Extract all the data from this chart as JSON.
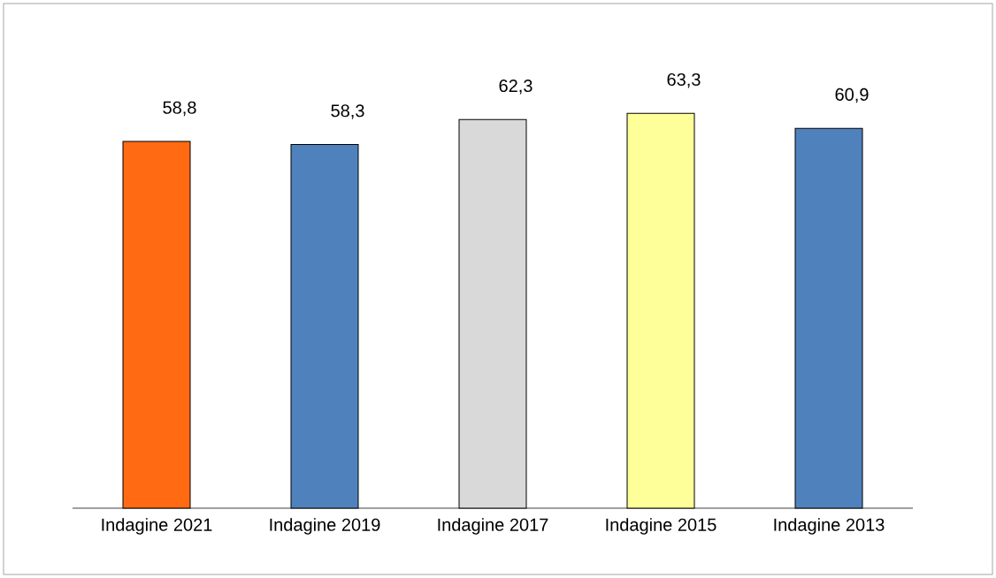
{
  "chart_data": {
    "type": "bar",
    "categories": [
      "Indagine 2021",
      "Indagine 2019",
      "Indagine 2017",
      "Indagine 2015",
      "Indagine 2013"
    ],
    "values": [
      58.8,
      58.3,
      62.3,
      63.3,
      60.9
    ],
    "colors": [
      "#ff6a13",
      "#4f81bd",
      "#d9d9d9",
      "#ffff99",
      "#4f81bd"
    ],
    "value_labels": [
      "58,8",
      "58,3",
      "62,3",
      "63,3",
      "60,9"
    ]
  }
}
